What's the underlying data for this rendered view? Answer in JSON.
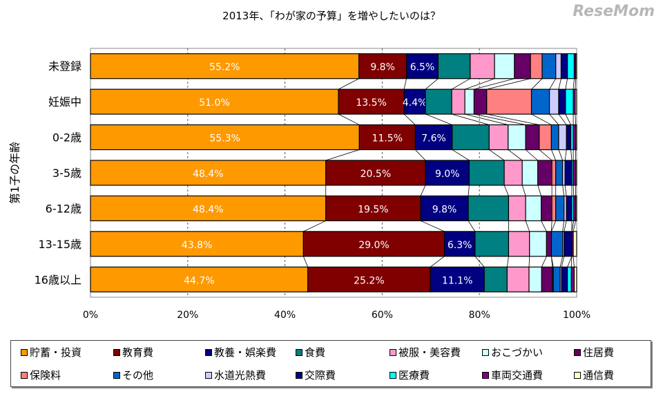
{
  "chart_data": {
    "type": "bar",
    "orientation": "horizontal",
    "stacked": "100%",
    "title": "2013年、「わが家の予算」を増やしたいのは？",
    "ylabel": "第1子の年齢",
    "xlabel": "",
    "xlim": [
      0,
      100
    ],
    "xticks": [
      "0%",
      "20%",
      "40%",
      "60%",
      "80%",
      "100%"
    ],
    "grid": "vertical dashed",
    "legend_position": "bottom",
    "categories": [
      "未登録",
      "妊娠中",
      "0-2歳",
      "3-5歳",
      "6-12歳",
      "13-15歳",
      "16歳以上"
    ],
    "series": [
      {
        "name": "貯蓄・投資",
        "color": "#FF9900",
        "values": [
          55.2,
          51.0,
          55.3,
          48.4,
          48.4,
          43.8,
          44.7
        ],
        "labels": [
          "55.2%",
          "51.0%",
          "55.3%",
          "48.4%",
          "48.4%",
          "43.8%",
          "44.7%"
        ]
      },
      {
        "name": "教育費",
        "color": "#800000",
        "values": [
          9.8,
          13.5,
          11.5,
          20.5,
          19.5,
          29.0,
          25.2
        ],
        "labels": [
          "9.8%",
          "13.5%",
          "11.5%",
          "20.5%",
          "19.5%",
          "29.0%",
          "25.2%"
        ]
      },
      {
        "name": "教養・娯楽費",
        "color": "#000080",
        "values": [
          6.5,
          4.4,
          7.6,
          9.0,
          9.8,
          6.3,
          11.1
        ],
        "labels": [
          "6.5%",
          "4.4%",
          "7.6%",
          "9.0%",
          "9.8%",
          "6.3%",
          "11.1%"
        ]
      },
      {
        "name": "食費",
        "color": "#008080",
        "values": [
          6.6,
          5.4,
          7.6,
          7.2,
          8.3,
          6.9,
          4.7
        ]
      },
      {
        "name": "被服・美容費",
        "color": "#FF99CC",
        "values": [
          5.0,
          2.7,
          3.9,
          3.7,
          3.5,
          4.3,
          4.5
        ]
      },
      {
        "name": "おこづかい",
        "color": "#CCFFFF",
        "values": [
          4.1,
          1.9,
          3.6,
          3.2,
          3.2,
          3.5,
          2.6
        ]
      },
      {
        "name": "住居費",
        "color": "#660066",
        "values": [
          3.3,
          2.6,
          2.8,
          2.9,
          2.2,
          1.0,
          2.2
        ]
      },
      {
        "name": "保険料",
        "color": "#FF8080",
        "values": [
          2.4,
          9.2,
          2.5,
          0.8,
          0.8,
          0.0,
          0.2
        ]
      },
      {
        "name": "その他",
        "color": "#0066CC",
        "values": [
          2.8,
          3.7,
          1.5,
          1.4,
          1.7,
          2.3,
          1.4
        ]
      },
      {
        "name": "水道光熱費",
        "color": "#CCCCFF",
        "values": [
          1.1,
          1.9,
          1.6,
          0.5,
          0.5,
          0.3,
          0.3
        ]
      },
      {
        "name": "交際費",
        "color": "#000080",
        "values": [
          1.3,
          1.4,
          0.9,
          1.4,
          1.1,
          1.6,
          1.2
        ]
      },
      {
        "name": "医療費",
        "color": "#00FFFF",
        "values": [
          1.4,
          1.6,
          0.5,
          0.3,
          0.4,
          0.0,
          0.8
        ]
      },
      {
        "name": "車両交通費",
        "color": "#800080",
        "values": [
          0.3,
          0.4,
          0.5,
          0.5,
          0.4,
          0.3,
          0.6
        ]
      },
      {
        "name": "通信費",
        "color": "#FFFFCC",
        "values": [
          0.2,
          0.3,
          0.2,
          0.2,
          0.2,
          0.7,
          0.5
        ]
      }
    ]
  },
  "watermark": "ReseMom"
}
